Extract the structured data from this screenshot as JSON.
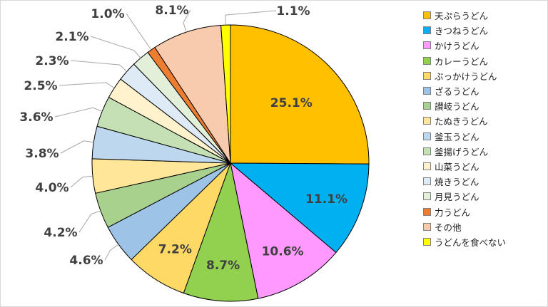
{
  "chart_data": {
    "type": "pie",
    "legend_position": "right",
    "slices": [
      {
        "label": "天ぷらうどん",
        "value": 25.1,
        "value_label": "25.1%",
        "color": "#FFC000"
      },
      {
        "label": "きつねうどん",
        "value": 11.1,
        "value_label": "11.1%",
        "color": "#00B0F0"
      },
      {
        "label": "かけうどん",
        "value": 10.6,
        "value_label": "10.6%",
        "color": "#FF99FF"
      },
      {
        "label": "カレーうどん",
        "value": 8.7,
        "value_label": "8.7%",
        "color": "#92D050"
      },
      {
        "label": "ぶっかけうどん",
        "value": 7.2,
        "value_label": "7.2%",
        "color": "#FFD966"
      },
      {
        "label": "ざるうどん",
        "value": 4.6,
        "value_label": "4.6%",
        "color": "#9DC3E6"
      },
      {
        "label": "讃岐うどん",
        "value": 4.2,
        "value_label": "4.2%",
        "color": "#A9D18E"
      },
      {
        "label": "たぬきうどん",
        "value": 4.0,
        "value_label": "4.0%",
        "color": "#FFE699"
      },
      {
        "label": "釜玉うどん",
        "value": 3.8,
        "value_label": "3.8%",
        "color": "#BDD7EE"
      },
      {
        "label": "釜揚げうどん",
        "value": 3.6,
        "value_label": "3.6%",
        "color": "#C5E0B4"
      },
      {
        "label": "山菜うどん",
        "value": 2.5,
        "value_label": "2.5%",
        "color": "#FFF2CC"
      },
      {
        "label": "焼きうどん",
        "value": 2.3,
        "value_label": "2.3%",
        "color": "#DEEBF7"
      },
      {
        "label": "月見うどん",
        "value": 2.1,
        "value_label": "2.1%",
        "color": "#E2F0D9"
      },
      {
        "label": "力うどん",
        "value": 1.0,
        "value_label": "1.0%",
        "color": "#ED7D31"
      },
      {
        "label": "その他",
        "value": 8.1,
        "value_label": "8.1%",
        "color": "#F8CBAD"
      },
      {
        "label": "うどんを食べない",
        "value": 1.1,
        "value_label": "1.1%",
        "color": "#FFFF00"
      }
    ]
  }
}
